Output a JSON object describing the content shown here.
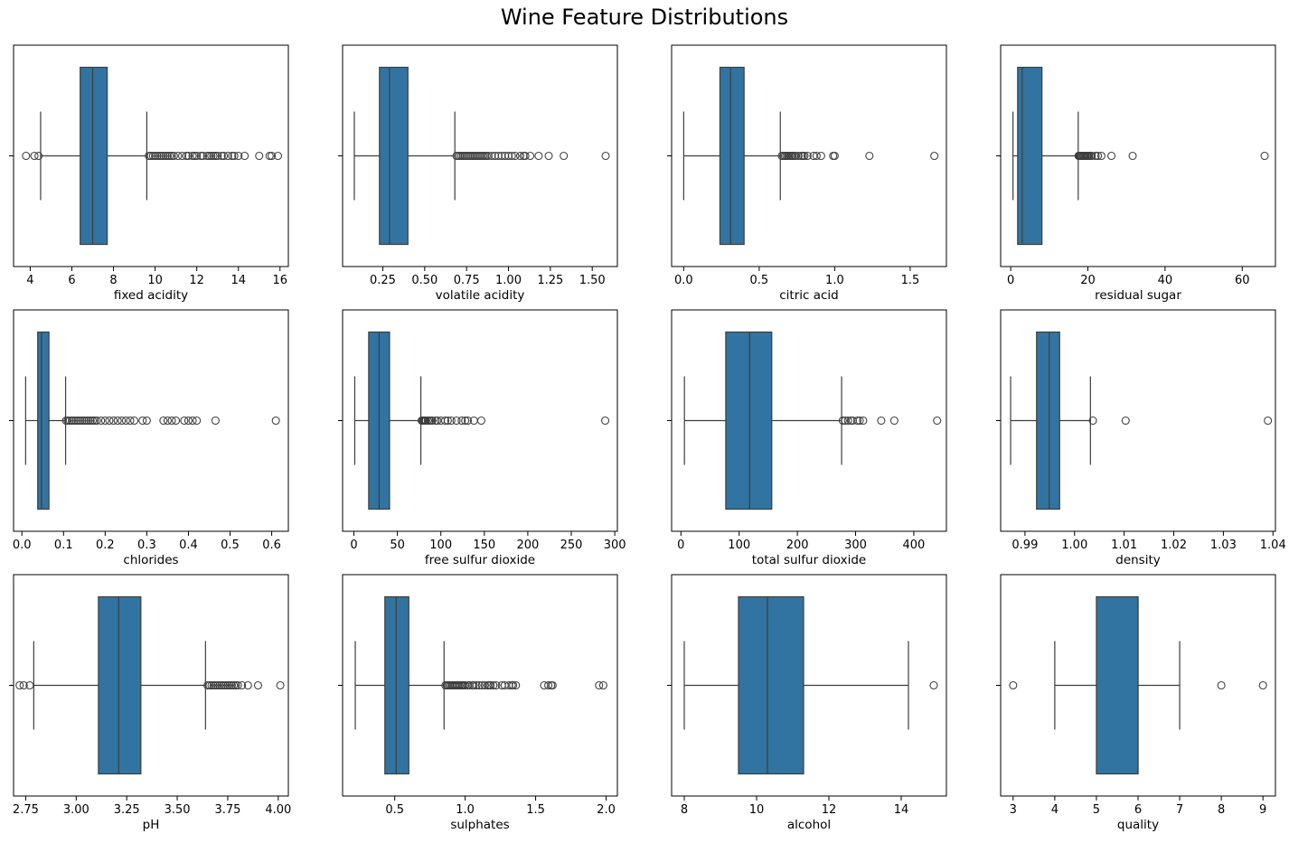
{
  "title": "Wine Feature Distributions",
  "colors": {
    "box_fill": "#3274a1",
    "line": "#3d3d3d",
    "axis": "#000000"
  },
  "chart_data": [
    {
      "type": "box",
      "xlabel": "fixed acidity",
      "xlim": [
        3.2,
        16.4
      ],
      "ticks": [
        4,
        6,
        8,
        10,
        12,
        14,
        16
      ],
      "tick_labels": [
        "4",
        "6",
        "8",
        "10",
        "12",
        "14",
        "16"
      ],
      "stats": {
        "whislo": 4.5,
        "q1": 6.4,
        "median": 7.0,
        "q3": 7.7,
        "whishi": 9.6
      },
      "outliers": [
        3.8,
        4.2,
        4.4,
        9.7,
        9.8,
        9.9,
        10.0,
        10.1,
        10.2,
        10.3,
        10.4,
        10.5,
        10.6,
        10.7,
        10.8,
        10.9,
        11.1,
        11.3,
        11.5,
        11.6,
        11.8,
        11.9,
        12.0,
        12.2,
        12.3,
        12.5,
        12.6,
        12.7,
        12.8,
        12.9,
        13.0,
        13.2,
        13.3,
        13.5,
        13.7,
        13.8,
        14.0,
        14.3,
        15.0,
        15.5,
        15.6,
        15.9
      ]
    },
    {
      "type": "box",
      "xlabel": "volatile acidity",
      "xlim": [
        0.01,
        1.65
      ],
      "ticks": [
        0.25,
        0.5,
        0.75,
        1.0,
        1.25,
        1.5
      ],
      "tick_labels": [
        "0.25",
        "0.50",
        "0.75",
        "1.00",
        "1.25",
        "1.50"
      ],
      "stats": {
        "whislo": 0.08,
        "q1": 0.23,
        "median": 0.29,
        "q3": 0.4,
        "whishi": 0.68
      },
      "outliers": [
        0.69,
        0.7,
        0.71,
        0.72,
        0.73,
        0.74,
        0.75,
        0.76,
        0.77,
        0.78,
        0.79,
        0.8,
        0.81,
        0.82,
        0.83,
        0.84,
        0.85,
        0.86,
        0.87,
        0.88,
        0.9,
        0.92,
        0.94,
        0.96,
        0.98,
        1.0,
        1.02,
        1.04,
        1.07,
        1.09,
        1.1,
        1.13,
        1.18,
        1.24,
        1.33,
        1.58
      ]
    },
    {
      "type": "box",
      "xlabel": "citric acid",
      "xlim": [
        -0.08,
        1.74
      ],
      "ticks": [
        0.0,
        0.5,
        1.0,
        1.5
      ],
      "tick_labels": [
        "0.0",
        "0.5",
        "1.0",
        "1.5"
      ],
      "stats": {
        "whislo": 0.0,
        "q1": 0.24,
        "median": 0.31,
        "q3": 0.4,
        "whishi": 0.64
      },
      "outliers": [
        0.65,
        0.66,
        0.67,
        0.68,
        0.69,
        0.7,
        0.71,
        0.72,
        0.73,
        0.74,
        0.76,
        0.78,
        0.79,
        0.8,
        0.82,
        0.86,
        0.88,
        0.91,
        0.99,
        1.0,
        1.23,
        1.66
      ]
    },
    {
      "type": "box",
      "xlabel": "residual sugar",
      "xlim": [
        -2.6,
        68.6
      ],
      "ticks": [
        0,
        20,
        40,
        60
      ],
      "tick_labels": [
        "0",
        "20",
        "40",
        "60"
      ],
      "stats": {
        "whislo": 0.6,
        "q1": 1.8,
        "median": 3.0,
        "q3": 8.1,
        "whishi": 17.5
      },
      "outliers": [
        17.6,
        17.8,
        18.0,
        18.2,
        18.5,
        18.8,
        19.0,
        19.3,
        19.5,
        19.8,
        20.0,
        20.3,
        20.7,
        21.0,
        22.0,
        22.6,
        23.5,
        26.1,
        31.6,
        65.8
      ]
    },
    {
      "type": "box",
      "xlabel": "chlorides",
      "xlim": [
        -0.02,
        0.64
      ],
      "ticks": [
        0.0,
        0.1,
        0.2,
        0.3,
        0.4,
        0.5,
        0.6
      ],
      "tick_labels": [
        "0.0",
        "0.1",
        "0.2",
        "0.3",
        "0.4",
        "0.5",
        "0.6"
      ],
      "stats": {
        "whislo": 0.009,
        "q1": 0.038,
        "median": 0.047,
        "q3": 0.065,
        "whishi": 0.105
      },
      "outliers": [
        0.106,
        0.11,
        0.115,
        0.12,
        0.125,
        0.13,
        0.135,
        0.14,
        0.145,
        0.15,
        0.155,
        0.16,
        0.165,
        0.17,
        0.175,
        0.18,
        0.19,
        0.2,
        0.21,
        0.22,
        0.23,
        0.24,
        0.25,
        0.26,
        0.27,
        0.29,
        0.3,
        0.34,
        0.35,
        0.36,
        0.37,
        0.39,
        0.4,
        0.41,
        0.42,
        0.465,
        0.61
      ]
    },
    {
      "type": "box",
      "xlabel": "free sulfur dioxide",
      "xlim": [
        -13,
        303
      ],
      "ticks": [
        0,
        50,
        100,
        150,
        200,
        250,
        300
      ],
      "tick_labels": [
        "0",
        "50",
        "100",
        "150",
        "200",
        "250",
        "300"
      ],
      "stats": {
        "whislo": 1,
        "q1": 17,
        "median": 29,
        "q3": 41,
        "whishi": 77
      },
      "outliers": [
        78,
        79,
        80,
        81,
        82,
        83,
        85,
        87,
        89,
        90,
        94,
        96,
        100,
        105,
        108,
        112,
        118,
        124,
        128,
        131,
        138,
        146.5,
        289
      ]
    },
    {
      "type": "box",
      "xlabel": "total sulfur dioxide",
      "xlim": [
        -16,
        456
      ],
      "ticks": [
        0,
        100,
        200,
        300,
        400
      ],
      "tick_labels": [
        "0",
        "100",
        "200",
        "300",
        "400"
      ],
      "stats": {
        "whislo": 6,
        "q1": 77,
        "median": 118,
        "q3": 156,
        "whishi": 276
      },
      "outliers": [
        278,
        282,
        287,
        292,
        295,
        303,
        307,
        313,
        344,
        366.5,
        440
      ]
    },
    {
      "type": "box",
      "xlabel": "density",
      "xlim": [
        0.9851,
        1.0405
      ],
      "ticks": [
        0.99,
        1.0,
        1.01,
        1.02,
        1.03,
        1.04
      ],
      "tick_labels": [
        "0.99",
        "1.00",
        "1.01",
        "1.02",
        "1.03",
        "1.04"
      ],
      "stats": {
        "whislo": 0.98711,
        "q1": 0.99234,
        "median": 0.99489,
        "q3": 0.99699,
        "whishi": 1.0032
      },
      "outliers": [
        1.0037,
        1.0103,
        1.03898
      ]
    },
    {
      "type": "box",
      "xlabel": "pH",
      "xlim": [
        2.69,
        4.05
      ],
      "ticks": [
        2.75,
        3.0,
        3.25,
        3.5,
        3.75,
        4.0
      ],
      "tick_labels": [
        "2.75",
        "3.00",
        "3.25",
        "3.50",
        "3.75",
        "4.00"
      ],
      "stats": {
        "whislo": 2.79,
        "q1": 3.11,
        "median": 3.21,
        "q3": 3.32,
        "whishi": 3.64
      },
      "outliers": [
        2.72,
        2.74,
        2.77,
        3.65,
        3.66,
        3.67,
        3.68,
        3.69,
        3.7,
        3.71,
        3.72,
        3.73,
        3.74,
        3.75,
        3.76,
        3.77,
        3.78,
        3.79,
        3.8,
        3.82,
        3.85,
        3.9,
        4.01
      ]
    },
    {
      "type": "box",
      "xlabel": "sulphates",
      "xlim": [
        0.13,
        2.08
      ],
      "ticks": [
        0.5,
        1.0,
        1.5,
        2.0
      ],
      "tick_labels": [
        "0.5",
        "1.0",
        "1.5",
        "2.0"
      ],
      "stats": {
        "whislo": 0.22,
        "q1": 0.43,
        "median": 0.51,
        "q3": 0.6,
        "whishi": 0.85
      },
      "outliers": [
        0.86,
        0.87,
        0.88,
        0.89,
        0.9,
        0.91,
        0.92,
        0.93,
        0.94,
        0.95,
        0.96,
        0.97,
        0.98,
        0.99,
        1.0,
        1.02,
        1.03,
        1.05,
        1.06,
        1.08,
        1.1,
        1.12,
        1.14,
        1.16,
        1.17,
        1.18,
        1.2,
        1.22,
        1.26,
        1.28,
        1.31,
        1.33,
        1.34,
        1.36,
        1.56,
        1.59,
        1.61,
        1.62,
        1.95,
        1.98
      ]
    },
    {
      "type": "box",
      "xlabel": "alcohol",
      "xlim": [
        7.65,
        15.25
      ],
      "ticks": [
        8,
        10,
        12,
        14
      ],
      "tick_labels": [
        "8",
        "10",
        "12",
        "14"
      ],
      "stats": {
        "whislo": 8.0,
        "q1": 9.5,
        "median": 10.3,
        "q3": 11.3,
        "whishi": 14.2
      },
      "outliers": [
        14.9
      ]
    },
    {
      "type": "box",
      "xlabel": "quality",
      "xlim": [
        2.7,
        9.3
      ],
      "ticks": [
        3,
        4,
        5,
        6,
        7,
        8,
        9
      ],
      "tick_labels": [
        "3",
        "4",
        "5",
        "6",
        "7",
        "8",
        "9"
      ],
      "stats": {
        "whislo": 4,
        "q1": 5,
        "median": 6,
        "q3": 6,
        "whishi": 7
      },
      "outliers": [
        3,
        8,
        9
      ]
    }
  ]
}
